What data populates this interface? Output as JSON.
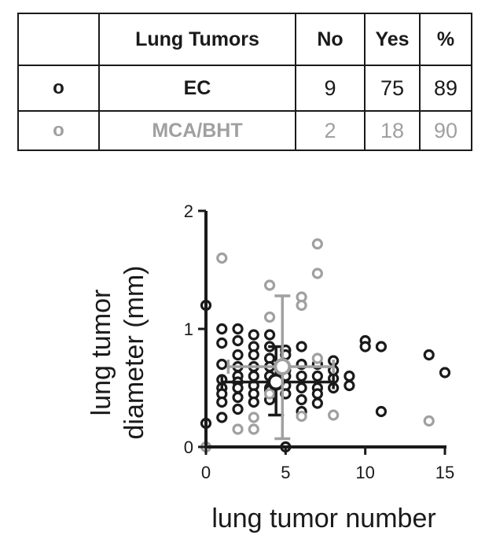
{
  "table": {
    "headers": [
      "",
      "Lung Tumors",
      "No",
      "Yes",
      "%"
    ],
    "rows": [
      {
        "marker": "o",
        "name": "EC",
        "no": "9",
        "yes": "75",
        "pct": "89",
        "color": "#1a1a1a"
      },
      {
        "marker": "o",
        "name": "MCA/BHT",
        "no": "2",
        "yes": "18",
        "pct": "90",
        "color": "#a0a0a0"
      }
    ]
  },
  "chart_data": {
    "type": "scatter",
    "xlabel": "lung tumor number",
    "ylabel": "lung tumor diameter (mm)",
    "xlim": [
      0,
      15
    ],
    "ylim": [
      0,
      2
    ],
    "xticks": [
      "0",
      "5",
      "10",
      "15"
    ],
    "yticks": [
      "0",
      "1",
      "2"
    ],
    "series": [
      {
        "color": "#1a1a1a",
        "points": [
          [
            1,
            1.0
          ],
          [
            1,
            0.88
          ],
          [
            1,
            0.7
          ],
          [
            1,
            0.57
          ],
          [
            1,
            0.5
          ],
          [
            1,
            0.45
          ],
          [
            1,
            0.38
          ],
          [
            1,
            0.25
          ],
          [
            2,
            1.0
          ],
          [
            2,
            0.9
          ],
          [
            2,
            0.78
          ],
          [
            2,
            0.68
          ],
          [
            2,
            0.6
          ],
          [
            2,
            0.55
          ],
          [
            2,
            0.5
          ],
          [
            2,
            0.42
          ],
          [
            2,
            0.32
          ],
          [
            3,
            0.95
          ],
          [
            3,
            0.85
          ],
          [
            3,
            0.78
          ],
          [
            3,
            0.68
          ],
          [
            3,
            0.6
          ],
          [
            3,
            0.52
          ],
          [
            3,
            0.45
          ],
          [
            3,
            0.38
          ],
          [
            4,
            0.95
          ],
          [
            4,
            0.85
          ],
          [
            4,
            0.75
          ],
          [
            4,
            0.68
          ],
          [
            4,
            0.6
          ],
          [
            4,
            0.5
          ],
          [
            4,
            0.48
          ],
          [
            4,
            0.4
          ],
          [
            5,
            0.82
          ],
          [
            5,
            0.78
          ],
          [
            5,
            0.65
          ],
          [
            5,
            0.6
          ],
          [
            5,
            0.52
          ],
          [
            5,
            0.45
          ],
          [
            6,
            0.85
          ],
          [
            6,
            0.7
          ],
          [
            6,
            0.6
          ],
          [
            6,
            0.5
          ],
          [
            6,
            0.4
          ],
          [
            6,
            0.3
          ],
          [
            7,
            0.7
          ],
          [
            7,
            0.6
          ],
          [
            7,
            0.5
          ],
          [
            7,
            0.45
          ],
          [
            7,
            0.37
          ],
          [
            8,
            0.73
          ],
          [
            8,
            0.65
          ],
          [
            8,
            0.58
          ],
          [
            8,
            0.5
          ],
          [
            9,
            0.6
          ],
          [
            9,
            0.52
          ],
          [
            10,
            0.9
          ],
          [
            10,
            0.85
          ],
          [
            11,
            0.85
          ],
          [
            11,
            0.3
          ],
          [
            14,
            0.78
          ],
          [
            15,
            0.63
          ],
          [
            0,
            1.2
          ],
          [
            0,
            0.2
          ],
          [
            5,
            0
          ]
        ],
        "mean": {
          "x": 4.4,
          "y": 0.55
        },
        "xerr": [
          1.0,
          8.0
        ],
        "yerr": [
          0.27,
          0.85
        ]
      },
      {
        "color": "#a0a0a0",
        "points": [
          [
            1,
            1.6
          ],
          [
            2,
            0.15
          ],
          [
            3,
            0.15
          ],
          [
            3,
            0.25
          ],
          [
            4,
            1.1
          ],
          [
            4,
            1.37
          ],
          [
            4,
            0.45
          ],
          [
            6,
            1.27
          ],
          [
            6,
            1.2
          ],
          [
            6,
            0.26
          ],
          [
            7,
            1.72
          ],
          [
            7,
            1.47
          ],
          [
            7,
            0.75
          ],
          [
            8,
            0.27
          ],
          [
            14,
            0.22
          ],
          [
            0,
            0
          ]
        ],
        "mean": {
          "x": 4.8,
          "y": 0.68
        },
        "xerr": [
          1.4,
          8.0
        ],
        "yerr": [
          0.07,
          1.28
        ]
      }
    ]
  }
}
